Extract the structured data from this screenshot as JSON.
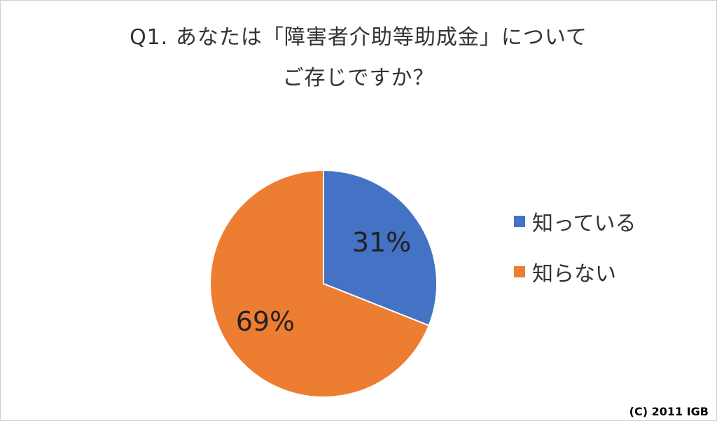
{
  "chart_data": {
    "type": "pie",
    "title": [
      "Q1. あなたは「障害者介助等助成金」について",
      "ご存じですか？"
    ],
    "categories": [
      "知っている",
      "知らない"
    ],
    "values": [
      31,
      69
    ],
    "data_labels": [
      "31%",
      "69%"
    ],
    "colors": [
      "#4472C4",
      "#ED7D31"
    ],
    "legend_position": "right"
  },
  "copyright": "(C) 2011 IGB"
}
